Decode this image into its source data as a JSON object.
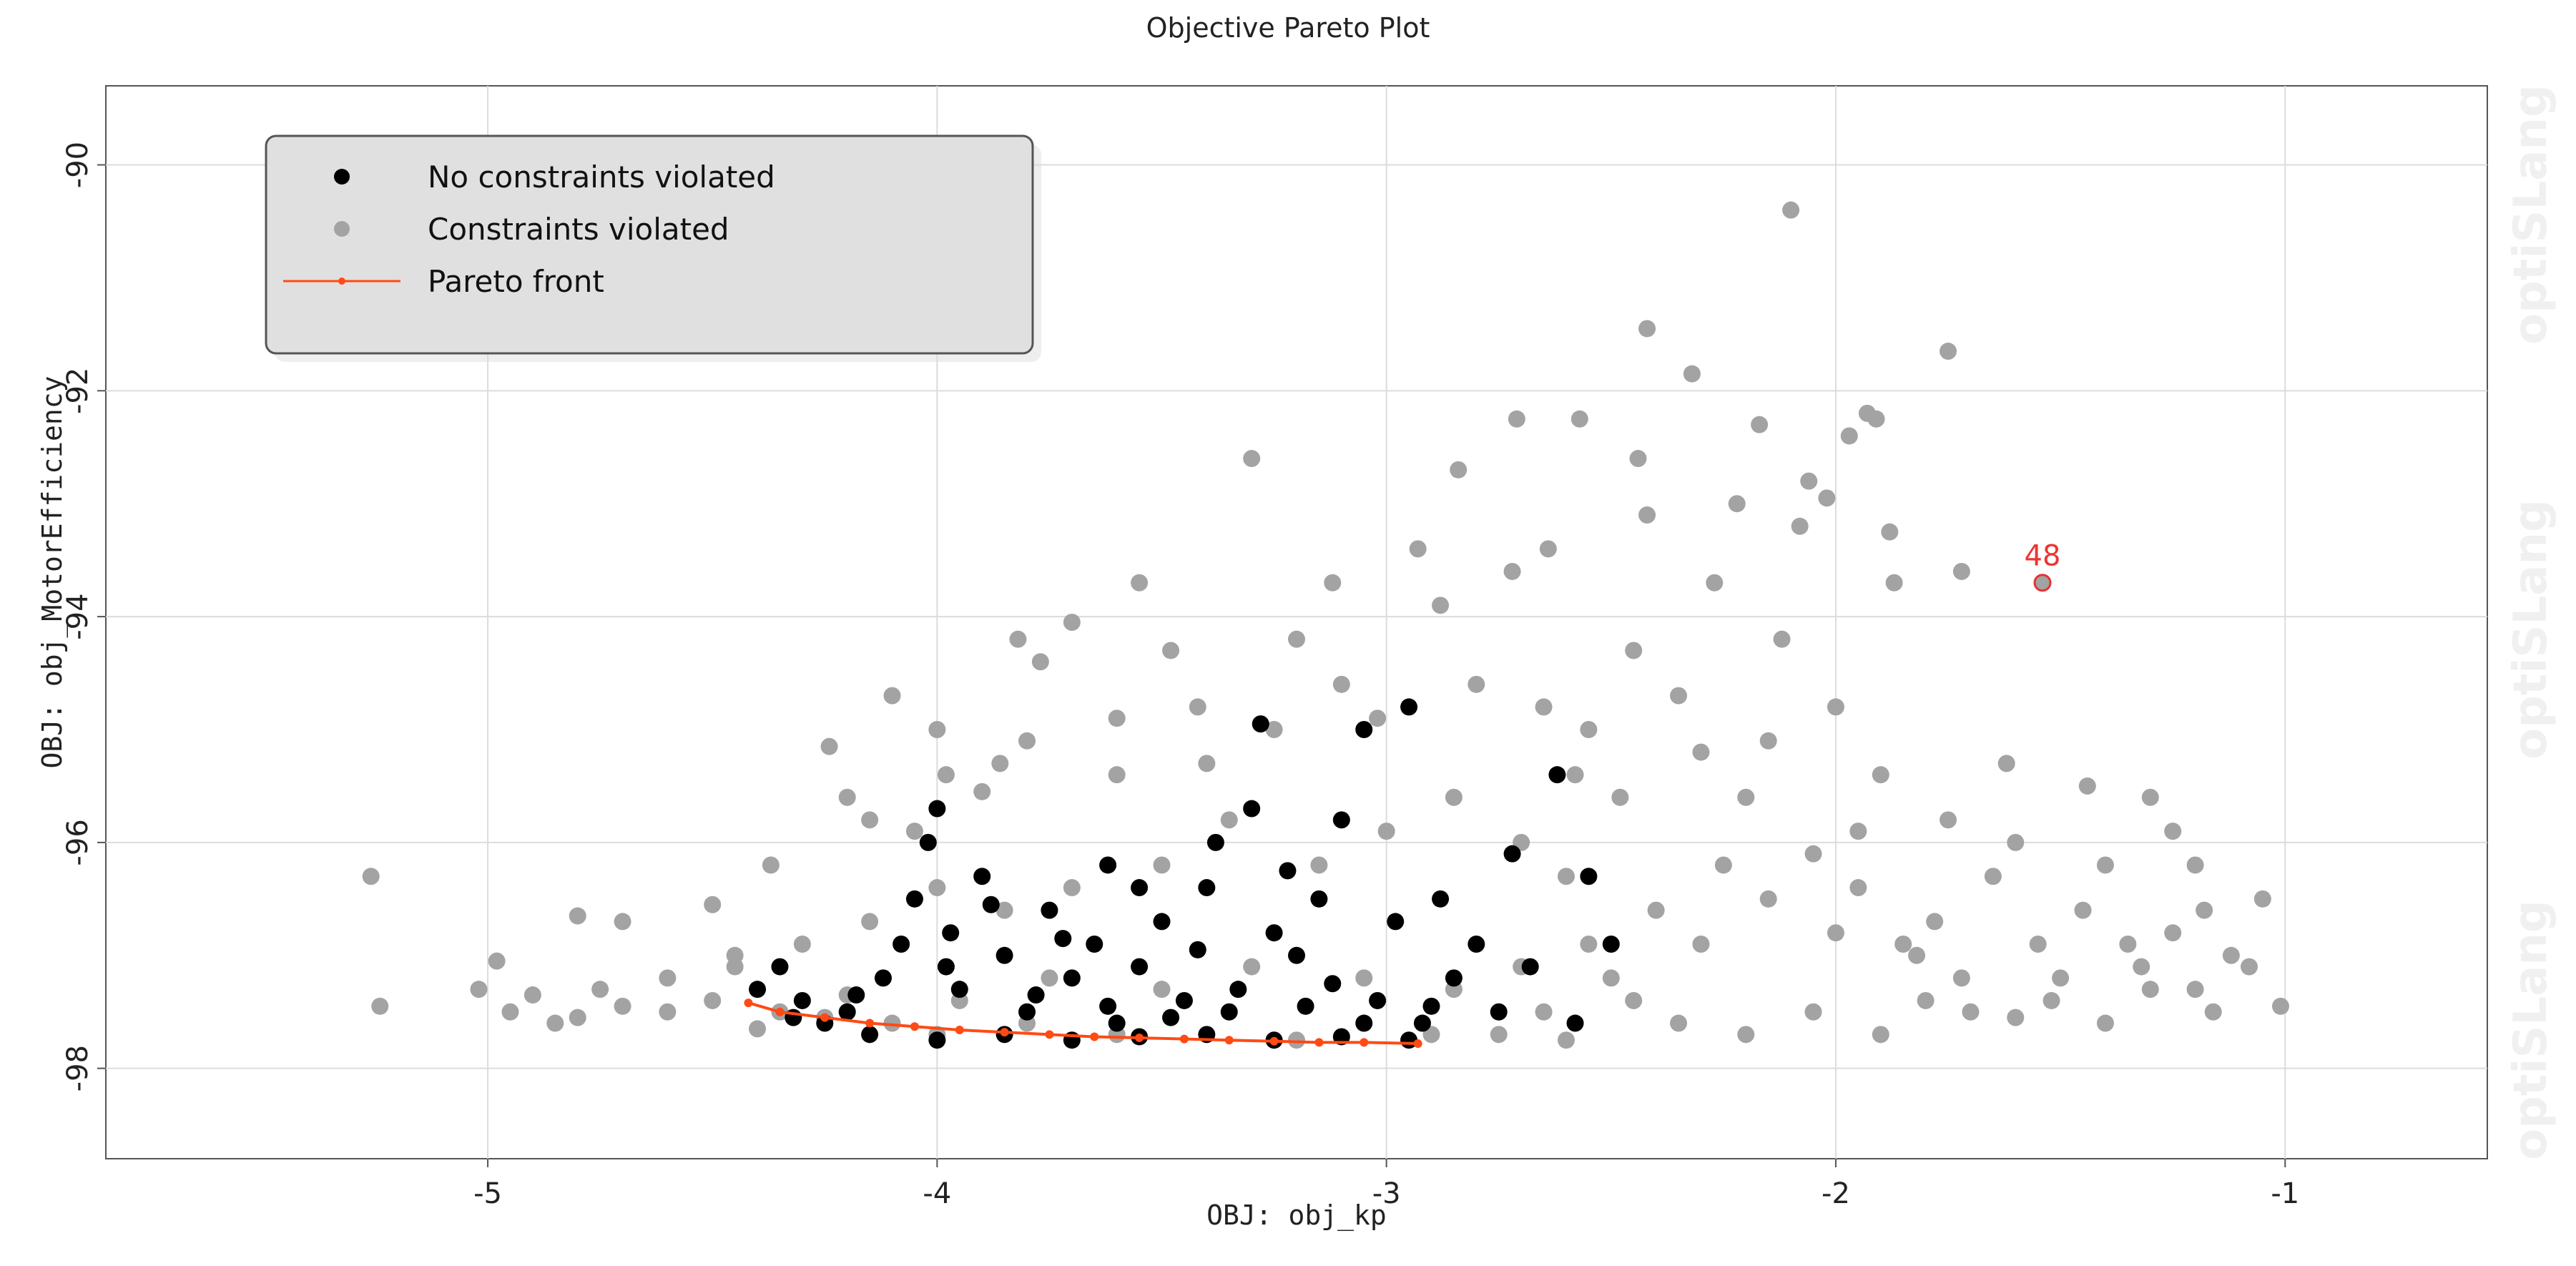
{
  "chart_data": {
    "type": "scatter",
    "title": "Objective Pareto Plot",
    "xlabel": "OBJ: obj_kp",
    "ylabel": "OBJ: obj_MotorEfficiency",
    "xlim": [
      -5.85,
      -0.55
    ],
    "ylim": [
      -98.8,
      -89.3
    ],
    "xticks": [
      -5,
      -4,
      -3,
      -2,
      -1
    ],
    "yticks": [
      -90,
      -92,
      -94,
      -96,
      -98
    ],
    "grid": true,
    "legend": {
      "placement": "top-left",
      "entries": [
        {
          "label": "No constraints violated",
          "color": "#000000",
          "marker": "dot"
        },
        {
          "label": "Constraints violated",
          "color": "#a3a3a3",
          "marker": "dot"
        },
        {
          "label": "Pareto front",
          "color": "#ff4a14",
          "marker": "line"
        }
      ]
    },
    "series": [
      {
        "name": "Constraints violated",
        "color": "#a3a3a3",
        "points": [
          [
            -5.26,
            -96.3
          ],
          [
            -5.24,
            -97.45
          ],
          [
            -5.02,
            -97.3
          ],
          [
            -4.98,
            -97.05
          ],
          [
            -4.8,
            -96.65
          ],
          [
            -4.7,
            -96.7
          ],
          [
            -4.5,
            -96.55
          ],
          [
            -4.45,
            -97.0
          ],
          [
            -4.37,
            -96.2
          ],
          [
            -4.24,
            -95.15
          ],
          [
            -4.2,
            -95.6
          ],
          [
            -4.1,
            -94.7
          ],
          [
            -4.05,
            -95.9
          ],
          [
            -3.98,
            -95.4
          ],
          [
            -3.9,
            -95.55
          ],
          [
            -3.86,
            -95.3
          ],
          [
            -3.82,
            -94.2
          ],
          [
            -3.77,
            -94.4
          ],
          [
            -3.7,
            -94.05
          ],
          [
            -3.6,
            -95.4
          ],
          [
            -3.55,
            -93.7
          ],
          [
            -3.48,
            -94.3
          ],
          [
            -3.42,
            -94.8
          ],
          [
            -3.3,
            -92.6
          ],
          [
            -3.2,
            -94.2
          ],
          [
            -3.12,
            -93.7
          ],
          [
            -3.02,
            -94.9
          ],
          [
            -2.93,
            -93.4
          ],
          [
            -2.88,
            -93.9
          ],
          [
            -2.84,
            -92.7
          ],
          [
            -2.72,
            -93.6
          ],
          [
            -2.71,
            -92.25
          ],
          [
            -2.64,
            -93.4
          ],
          [
            -2.57,
            -92.25
          ],
          [
            -2.44,
            -92.6
          ],
          [
            -2.42,
            -93.1
          ],
          [
            -2.42,
            -91.45
          ],
          [
            -2.32,
            -91.85
          ],
          [
            -2.27,
            -93.7
          ],
          [
            -2.22,
            -93.0
          ],
          [
            -2.17,
            -92.3
          ],
          [
            -2.1,
            -90.4
          ],
          [
            -2.08,
            -93.2
          ],
          [
            -2.06,
            -92.8
          ],
          [
            -2.02,
            -92.95
          ],
          [
            -1.97,
            -92.4
          ],
          [
            -1.93,
            -92.2
          ],
          [
            -1.91,
            -92.25
          ],
          [
            -1.88,
            -93.25
          ],
          [
            -1.87,
            -93.7
          ],
          [
            -1.75,
            -91.65
          ],
          [
            -1.72,
            -93.6
          ],
          [
            -1.54,
            -93.7
          ],
          [
            -1.62,
            -95.3
          ],
          [
            -1.44,
            -95.5
          ],
          [
            -1.3,
            -95.6
          ],
          [
            -1.25,
            -95.9
          ],
          [
            -1.2,
            -96.2
          ],
          [
            -1.18,
            -96.6
          ],
          [
            -1.05,
            -96.5
          ],
          [
            -1.01,
            -97.45
          ],
          [
            -1.12,
            -97.0
          ],
          [
            -1.16,
            -97.5
          ],
          [
            -1.3,
            -97.3
          ],
          [
            -1.4,
            -97.6
          ],
          [
            -1.5,
            -97.2
          ],
          [
            -1.6,
            -97.55
          ],
          [
            -1.7,
            -97.5
          ],
          [
            -1.8,
            -97.4
          ],
          [
            -1.9,
            -97.7
          ],
          [
            -2.05,
            -97.5
          ],
          [
            -2.2,
            -97.7
          ],
          [
            -2.35,
            -97.6
          ],
          [
            -2.45,
            -97.4
          ],
          [
            -2.6,
            -97.75
          ],
          [
            -2.75,
            -97.7
          ],
          [
            -2.9,
            -97.7
          ],
          [
            -3.2,
            -97.75
          ],
          [
            -3.6,
            -97.7
          ],
          [
            -4.0,
            -97.7
          ],
          [
            -4.4,
            -97.65
          ],
          [
            -4.8,
            -97.55
          ],
          [
            -2.55,
            -95.0
          ],
          [
            -2.48,
            -95.6
          ],
          [
            -2.3,
            -95.2
          ],
          [
            -2.2,
            -95.6
          ],
          [
            -2.0,
            -94.8
          ],
          [
            -2.12,
            -94.2
          ],
          [
            -2.05,
            -96.1
          ],
          [
            -1.95,
            -96.4
          ],
          [
            -1.85,
            -96.9
          ],
          [
            -1.78,
            -96.7
          ],
          [
            -1.65,
            -96.3
          ],
          [
            -1.55,
            -96.9
          ],
          [
            -1.45,
            -96.6
          ],
          [
            -1.35,
            -96.9
          ],
          [
            -2.6,
            -96.3
          ],
          [
            -2.7,
            -96.0
          ],
          [
            -2.85,
            -95.6
          ],
          [
            -3.0,
            -95.9
          ],
          [
            -3.15,
            -96.2
          ],
          [
            -3.35,
            -95.8
          ],
          [
            -3.5,
            -96.2
          ],
          [
            -3.7,
            -96.4
          ],
          [
            -3.85,
            -96.6
          ],
          [
            -4.0,
            -96.4
          ],
          [
            -4.15,
            -96.7
          ],
          [
            -4.3,
            -96.9
          ],
          [
            -4.45,
            -97.1
          ],
          [
            -4.6,
            -97.2
          ],
          [
            -4.75,
            -97.3
          ],
          [
            -4.9,
            -97.35
          ],
          [
            -4.95,
            -97.5
          ],
          [
            -4.6,
            -97.5
          ],
          [
            -2.45,
            -94.3
          ],
          [
            -2.35,
            -94.7
          ],
          [
            -2.15,
            -95.1
          ],
          [
            -1.9,
            -95.4
          ],
          [
            -1.75,
            -95.8
          ],
          [
            -1.6,
            -96.0
          ],
          [
            -1.4,
            -96.2
          ],
          [
            -1.25,
            -96.8
          ],
          [
            -1.08,
            -97.1
          ],
          [
            -1.95,
            -95.9
          ],
          [
            -2.25,
            -96.2
          ],
          [
            -2.4,
            -96.6
          ],
          [
            -2.55,
            -96.9
          ],
          [
            -2.7,
            -97.1
          ],
          [
            -2.85,
            -97.3
          ],
          [
            -3.05,
            -97.2
          ],
          [
            -3.3,
            -97.1
          ],
          [
            -3.5,
            -97.3
          ],
          [
            -3.75,
            -97.2
          ],
          [
            -3.95,
            -97.4
          ],
          [
            -4.2,
            -97.35
          ],
          [
            -4.35,
            -97.5
          ],
          [
            -2.8,
            -94.6
          ],
          [
            -2.65,
            -94.8
          ],
          [
            -2.58,
            -95.4
          ],
          [
            -3.1,
            -94.6
          ],
          [
            -3.25,
            -95.0
          ],
          [
            -3.4,
            -95.3
          ],
          [
            -3.6,
            -94.9
          ],
          [
            -3.8,
            -95.1
          ],
          [
            -4.0,
            -95.0
          ],
          [
            -4.15,
            -95.8
          ],
          [
            -2.0,
            -96.8
          ],
          [
            -1.82,
            -97.0
          ],
          [
            -1.72,
            -97.2
          ],
          [
            -1.52,
            -97.4
          ],
          [
            -1.32,
            -97.1
          ],
          [
            -1.2,
            -97.3
          ],
          [
            -2.15,
            -96.5
          ],
          [
            -2.3,
            -96.9
          ],
          [
            -2.5,
            -97.2
          ],
          [
            -2.65,
            -97.5
          ],
          [
            -3.8,
            -97.6
          ],
          [
            -4.1,
            -97.6
          ],
          [
            -4.25,
            -97.55
          ],
          [
            -4.5,
            -97.4
          ],
          [
            -4.7,
            -97.45
          ],
          [
            -4.85,
            -97.6
          ]
        ]
      },
      {
        "name": "No constraints violated",
        "color": "#000000",
        "points": [
          [
            -4.4,
            -97.3
          ],
          [
            -4.35,
            -97.1
          ],
          [
            -4.3,
            -97.4
          ],
          [
            -4.25,
            -97.6
          ],
          [
            -4.2,
            -97.5
          ],
          [
            -4.12,
            -97.2
          ],
          [
            -4.05,
            -96.5
          ],
          [
            -4.02,
            -96.0
          ],
          [
            -4.0,
            -95.7
          ],
          [
            -3.97,
            -96.8
          ],
          [
            -3.95,
            -97.3
          ],
          [
            -3.9,
            -96.3
          ],
          [
            -3.85,
            -97.0
          ],
          [
            -3.8,
            -97.5
          ],
          [
            -3.75,
            -96.6
          ],
          [
            -3.7,
            -97.2
          ],
          [
            -3.65,
            -96.9
          ],
          [
            -3.6,
            -97.6
          ],
          [
            -3.55,
            -97.1
          ],
          [
            -3.5,
            -96.7
          ],
          [
            -3.45,
            -97.4
          ],
          [
            -3.4,
            -96.4
          ],
          [
            -3.38,
            -96.0
          ],
          [
            -3.33,
            -97.3
          ],
          [
            -3.3,
            -95.7
          ],
          [
            -3.28,
            -94.95
          ],
          [
            -3.25,
            -96.8
          ],
          [
            -3.2,
            -97.0
          ],
          [
            -3.15,
            -96.5
          ],
          [
            -3.1,
            -95.8
          ],
          [
            -3.05,
            -95.0
          ],
          [
            -3.02,
            -97.4
          ],
          [
            -2.98,
            -96.7
          ],
          [
            -2.95,
            -94.8
          ],
          [
            -2.92,
            -97.6
          ],
          [
            -2.88,
            -96.5
          ],
          [
            -2.85,
            -97.2
          ],
          [
            -2.8,
            -96.9
          ],
          [
            -2.75,
            -97.5
          ],
          [
            -2.72,
            -96.1
          ],
          [
            -2.68,
            -97.1
          ],
          [
            -2.62,
            -95.4
          ],
          [
            -2.58,
            -97.6
          ],
          [
            -2.55,
            -96.3
          ],
          [
            -2.5,
            -96.9
          ],
          [
            -4.15,
            -97.7
          ],
          [
            -4.0,
            -97.75
          ],
          [
            -3.85,
            -97.7
          ],
          [
            -3.7,
            -97.75
          ],
          [
            -3.55,
            -97.72
          ],
          [
            -3.4,
            -97.7
          ],
          [
            -3.25,
            -97.75
          ],
          [
            -3.1,
            -97.72
          ],
          [
            -2.95,
            -97.75
          ],
          [
            -4.32,
            -97.55
          ],
          [
            -4.18,
            -97.35
          ],
          [
            -3.98,
            -97.1
          ],
          [
            -3.78,
            -97.35
          ],
          [
            -3.62,
            -97.45
          ],
          [
            -3.48,
            -97.55
          ],
          [
            -3.35,
            -97.5
          ],
          [
            -3.18,
            -97.45
          ],
          [
            -3.05,
            -97.6
          ],
          [
            -2.9,
            -97.45
          ],
          [
            -3.62,
            -96.2
          ],
          [
            -3.42,
            -96.95
          ],
          [
            -3.22,
            -96.25
          ],
          [
            -3.12,
            -97.25
          ],
          [
            -4.08,
            -96.9
          ],
          [
            -3.88,
            -96.55
          ],
          [
            -3.72,
            -96.85
          ],
          [
            -3.55,
            -96.4
          ]
        ]
      }
    ],
    "pareto_front": {
      "name": "Pareto front",
      "color": "#ff4a14",
      "points": [
        [
          -4.42,
          -97.42
        ],
        [
          -4.35,
          -97.5
        ],
        [
          -4.25,
          -97.55
        ],
        [
          -4.15,
          -97.6
        ],
        [
          -4.05,
          -97.63
        ],
        [
          -3.95,
          -97.66
        ],
        [
          -3.85,
          -97.68
        ],
        [
          -3.75,
          -97.7
        ],
        [
          -3.65,
          -97.72
        ],
        [
          -3.55,
          -97.73
        ],
        [
          -3.45,
          -97.74
        ],
        [
          -3.35,
          -97.75
        ],
        [
          -3.25,
          -97.76
        ],
        [
          -3.15,
          -97.77
        ],
        [
          -3.05,
          -97.77
        ],
        [
          -2.93,
          -97.78
        ]
      ]
    },
    "annotation": {
      "label": "48",
      "x": -1.54,
      "y": -93.7,
      "color": "#e33333"
    },
    "watermark": "optiSLang"
  }
}
